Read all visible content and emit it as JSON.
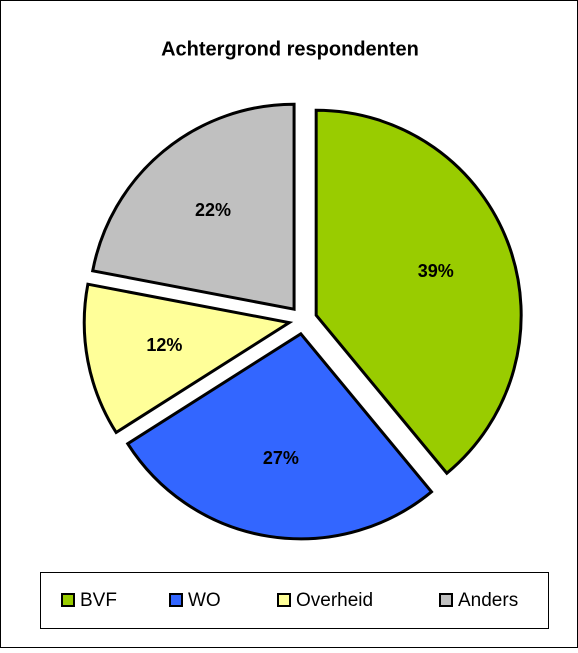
{
  "chart_data": {
    "type": "pie",
    "title": "Achtergrond respondenten",
    "categories": [
      "BVF",
      "WO",
      "Overheid",
      "Anders"
    ],
    "values": [
      39,
      27,
      12,
      22
    ],
    "value_labels": [
      "39%",
      "27%",
      "12%",
      "22%"
    ],
    "colors": [
      "#99cc00",
      "#3366ff",
      "#ffff99",
      "#c0c0c0"
    ],
    "legend": "bottom"
  }
}
